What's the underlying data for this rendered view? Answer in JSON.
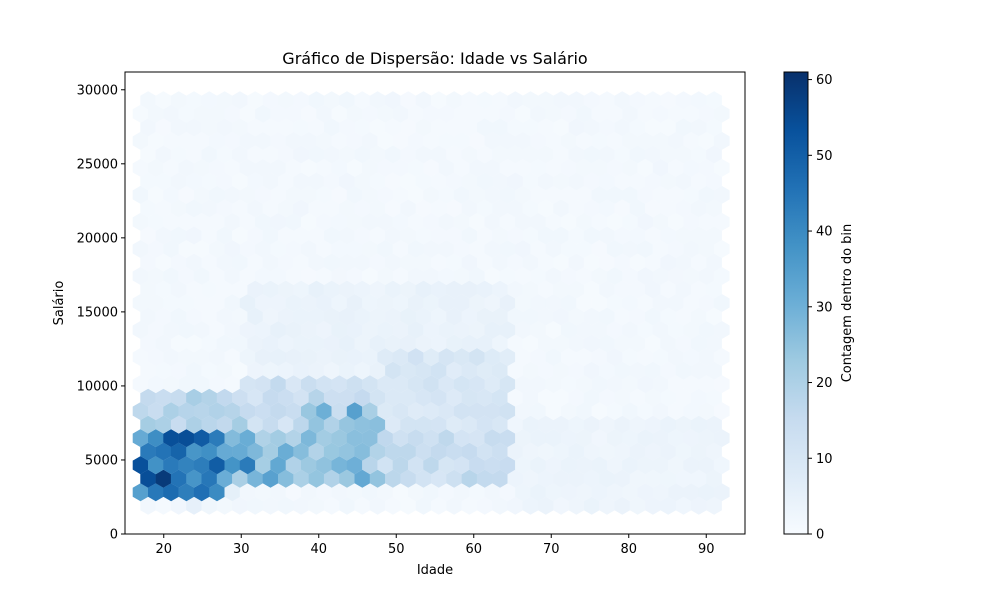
{
  "chart_data": {
    "type": "heatmap",
    "plot_kind": "hexbin",
    "title": "Gráfico de Dispersão: Idade vs Salário",
    "xlabel": "Idade",
    "ylabel": "Salário",
    "xlim": [
      15,
      95
    ],
    "ylim": [
      0,
      31200
    ],
    "x_ticks": [
      "20",
      "30",
      "40",
      "50",
      "60",
      "70",
      "80",
      "90"
    ],
    "x_tick_values": [
      20,
      30,
      40,
      50,
      60,
      70,
      80,
      90
    ],
    "y_ticks": [
      "0",
      "5000",
      "10000",
      "15000",
      "20000",
      "25000",
      "30000"
    ],
    "y_tick_values": [
      0,
      5000,
      10000,
      15000,
      20000,
      25000,
      30000
    ],
    "data_extent": {
      "x": [
        17,
        92
      ],
      "y": [
        1000,
        30000
      ]
    },
    "colormap": "Blues",
    "colorbar": {
      "label": "Contagem dentro do bin",
      "ticks": [
        "0",
        "10",
        "20",
        "30",
        "40",
        "50",
        "60"
      ],
      "tick_values": [
        0,
        10,
        20,
        30,
        40,
        50,
        60
      ],
      "range": [
        0,
        61
      ]
    },
    "density_regions": [
      {
        "x": [
          17,
          28
        ],
        "y": [
          2000,
          6500
        ],
        "count": 55
      },
      {
        "x": [
          19,
          24
        ],
        "y": [
          2500,
          4000
        ],
        "count": 61
      },
      {
        "x": [
          28,
          36
        ],
        "y": [
          3000,
          7000
        ],
        "count": 35
      },
      {
        "x": [
          36,
          48
        ],
        "y": [
          3000,
          7500
        ],
        "count": 30
      },
      {
        "x": [
          48,
          65
        ],
        "y": [
          3000,
          7000
        ],
        "count": 18
      },
      {
        "x": [
          17,
          30
        ],
        "y": [
          6500,
          9500
        ],
        "count": 22
      },
      {
        "x": [
          30,
          48
        ],
        "y": [
          7000,
          10500
        ],
        "count": 16
      },
      {
        "x": [
          48,
          65
        ],
        "y": [
          7000,
          12000
        ],
        "count": 12
      },
      {
        "x": [
          30,
          65
        ],
        "y": [
          10500,
          17000
        ],
        "count": 5
      },
      {
        "x": [
          65,
          92
        ],
        "y": [
          1500,
          8000
        ],
        "count": 4
      }
    ],
    "hotspots": [
      {
        "x": 21,
        "y": 3300,
        "count": 61
      },
      {
        "x": 24,
        "y": 3000,
        "count": 58
      },
      {
        "x": 26,
        "y": 3400,
        "count": 56
      },
      {
        "x": 22,
        "y": 4800,
        "count": 52
      },
      {
        "x": 30,
        "y": 4700,
        "count": 50
      },
      {
        "x": 30,
        "y": 6800,
        "count": 44
      },
      {
        "x": 40,
        "y": 8600,
        "count": 40
      },
      {
        "x": 44,
        "y": 5000,
        "count": 42
      },
      {
        "x": 46,
        "y": 4000,
        "count": 38
      },
      {
        "x": 45,
        "y": 8200,
        "count": 36
      }
    ]
  }
}
